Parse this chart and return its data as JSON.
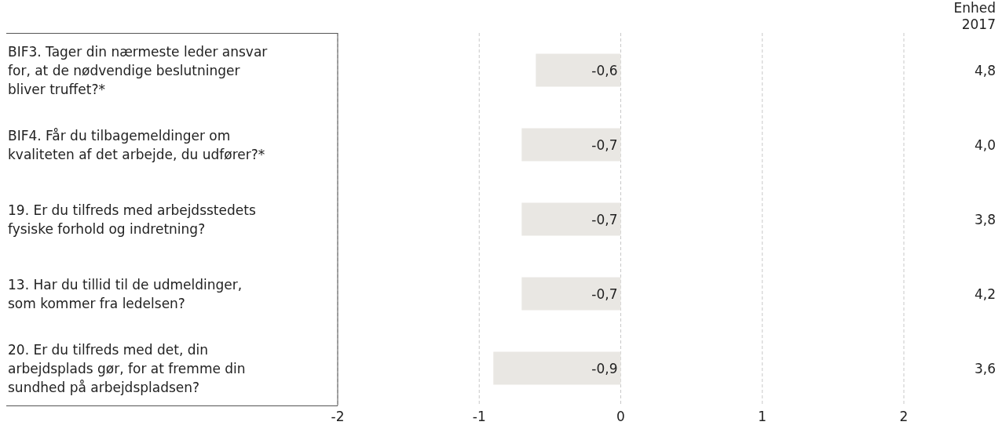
{
  "chart_data": {
    "type": "bar",
    "orientation": "horizontal",
    "categories": [
      "BIF3. Tager din nærmeste leder ansvar for, at de nødvendige beslutninger bliver truffet?*",
      "BIF4. Får du tilbagemeldinger om kvaliteten af det arbejde, du udfører?*",
      "19. Er du tilfreds med arbejdsstedets fysiske forhold og indretning?",
      "13. Har du tillid til de udmeldinger, som kommer fra ledelsen?",
      "20. Er du tilfreds med det, din arbejdsplads gør, for at fremme din sundhed på arbejdspladsen?"
    ],
    "values": [
      -0.6,
      -0.7,
      -0.7,
      -0.7,
      -0.9
    ],
    "color": "#e9e7e3",
    "value_labels": [
      "-0,6",
      "-0,7",
      "-0,7",
      "-0,7",
      "-0,9"
    ],
    "xlim": [
      -2,
      2
    ],
    "xticks": [
      -2,
      -1,
      0,
      1,
      2
    ],
    "grid": "x",
    "annotations": [
      "Enhed 2017",
      "4,8",
      "4,0",
      "3,8",
      "4,2",
      "3,6"
    ]
  }
}
